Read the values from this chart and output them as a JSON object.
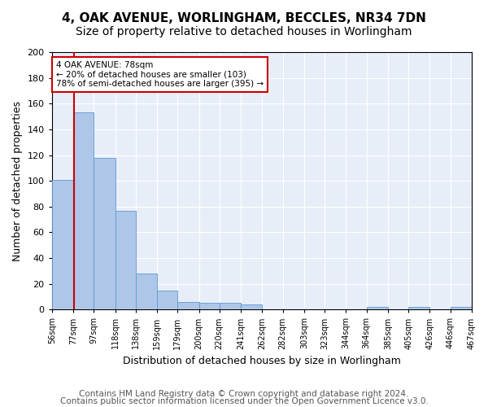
{
  "title1": "4, OAK AVENUE, WORLINGHAM, BECCLES, NR34 7DN",
  "title2": "Size of property relative to detached houses in Worlingham",
  "xlabel": "Distribution of detached houses by size in Worlingham",
  "ylabel": "Number of detached properties",
  "bar_values": [
    101,
    153,
    118,
    77,
    28,
    15,
    6,
    5,
    5,
    4,
    0,
    0,
    0,
    0,
    0,
    2,
    0,
    2,
    0,
    2
  ],
  "bar_labels": [
    "56sqm",
    "77sqm",
    "97sqm",
    "118sqm",
    "138sqm",
    "159sqm",
    "179sqm",
    "200sqm",
    "220sqm",
    "241sqm",
    "262sqm",
    "282sqm",
    "303sqm",
    "323sqm",
    "344sqm",
    "364sqm",
    "385sqm",
    "405sqm",
    "426sqm",
    "446sqm",
    "467sqm"
  ],
  "bar_color": "#aec6e8",
  "bar_edge_color": "#5a9bd4",
  "property_line_x": 78,
  "bin_edges": [
    56,
    77,
    97,
    118,
    138,
    159,
    179,
    200,
    220,
    241,
    262,
    282,
    303,
    323,
    344,
    364,
    385,
    405,
    426,
    446,
    467
  ],
  "annotation_title": "4 OAK AVENUE: 78sqm",
  "annotation_line1": "← 20% of detached houses are smaller (103)",
  "annotation_line2": "78% of semi-detached houses are larger (395) →",
  "annotation_box_color": "#ffffff",
  "annotation_edge_color": "#cc0000",
  "vline_color": "#cc0000",
  "ylim": [
    0,
    200
  ],
  "yticks": [
    0,
    20,
    40,
    60,
    80,
    100,
    120,
    140,
    160,
    180,
    200
  ],
  "footer1": "Contains HM Land Registry data © Crown copyright and database right 2024.",
  "footer2": "Contains public sector information licensed under the Open Government Licence v3.0.",
  "bg_color": "#e8eef8",
  "title1_fontsize": 11,
  "title2_fontsize": 10,
  "xlabel_fontsize": 9,
  "ylabel_fontsize": 9,
  "footer_fontsize": 7.5
}
